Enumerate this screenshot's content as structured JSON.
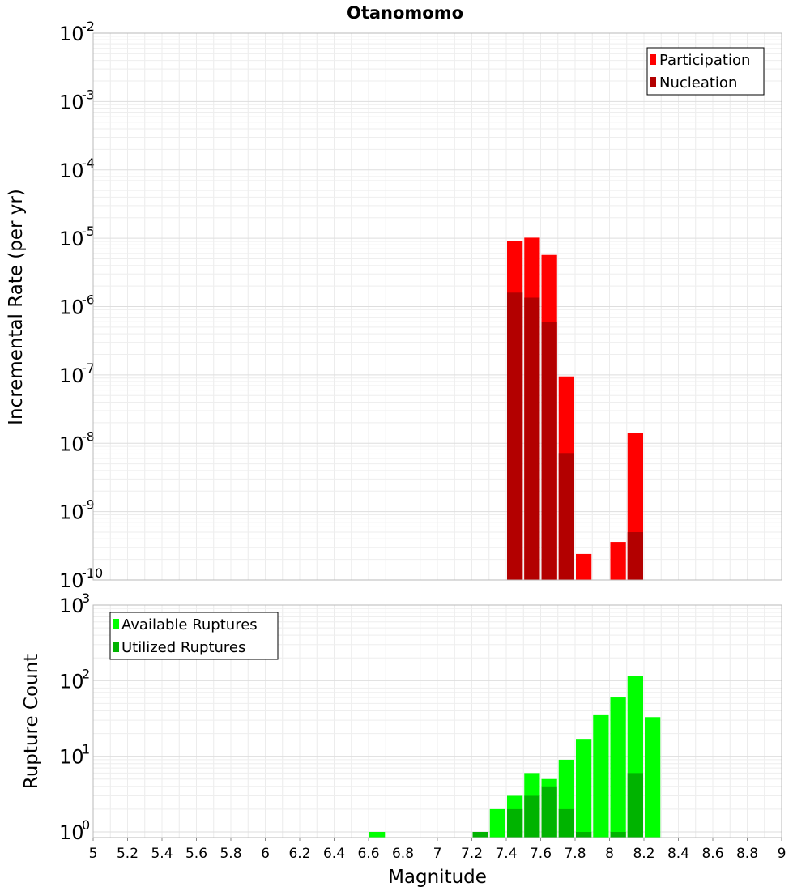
{
  "chart_data": [
    {
      "type": "bar",
      "title": "Otanomomo",
      "xlabel": "Magnitude",
      "ylabel": "Incremental Rate (per yr)",
      "yscale": "log",
      "xlim": [
        5,
        9
      ],
      "ylim_exponents": [
        -10,
        -2
      ],
      "ytick_exponents": [
        -10,
        -9,
        -8,
        -7,
        -6,
        -5,
        -4,
        -3,
        -2
      ],
      "bar_width": 0.1,
      "legend_position": "top-right",
      "series": [
        {
          "name": "Participation",
          "color": "#ff0000",
          "x": [
            7.45,
            7.55,
            7.65,
            7.75,
            7.85,
            8.05,
            8.15
          ],
          "values": [
            9e-06,
            1.02e-05,
            5.7e-06,
            9.5e-08,
            2.4e-10,
            3.6e-10,
            1.4e-08
          ]
        },
        {
          "name": "Nucleation",
          "color": "#b30000",
          "x": [
            7.45,
            7.55,
            7.65,
            7.75,
            8.15
          ],
          "values": [
            1.6e-06,
            1.35e-06,
            6e-07,
            7.2e-09,
            5e-10
          ]
        }
      ]
    },
    {
      "type": "bar",
      "xlabel": "Magnitude",
      "ylabel": "Rupture Count",
      "yscale": "log",
      "xlim": [
        5,
        9
      ],
      "ylim_exponents": [
        -0.075,
        3
      ],
      "ytick_exponents": [
        0,
        1,
        2,
        3
      ],
      "xticks": [
        "5",
        "5.2",
        "5.4",
        "5.6",
        "5.8",
        "6",
        "6.2",
        "6.4",
        "6.6",
        "6.8",
        "7",
        "7.2",
        "7.4",
        "7.6",
        "7.8",
        "8",
        "8.2",
        "8.4",
        "8.6",
        "8.8",
        "9"
      ],
      "bar_width": 0.1,
      "legend_position": "top-left",
      "series": [
        {
          "name": "Available Ruptures",
          "color": "#00ff00",
          "x": [
            6.65,
            7.25,
            7.35,
            7.45,
            7.55,
            7.65,
            7.75,
            7.85,
            7.95,
            8.05,
            8.15,
            8.25
          ],
          "values": [
            1,
            1,
            2,
            3,
            6,
            5,
            9,
            17,
            35,
            60,
            115,
            33
          ]
        },
        {
          "name": "Utilized Ruptures",
          "color": "#00b300",
          "x": [
            7.25,
            7.45,
            7.55,
            7.65,
            7.75,
            7.85,
            8.05,
            8.15
          ],
          "values": [
            1,
            2,
            3,
            4,
            2,
            1,
            1,
            6
          ]
        }
      ]
    }
  ]
}
